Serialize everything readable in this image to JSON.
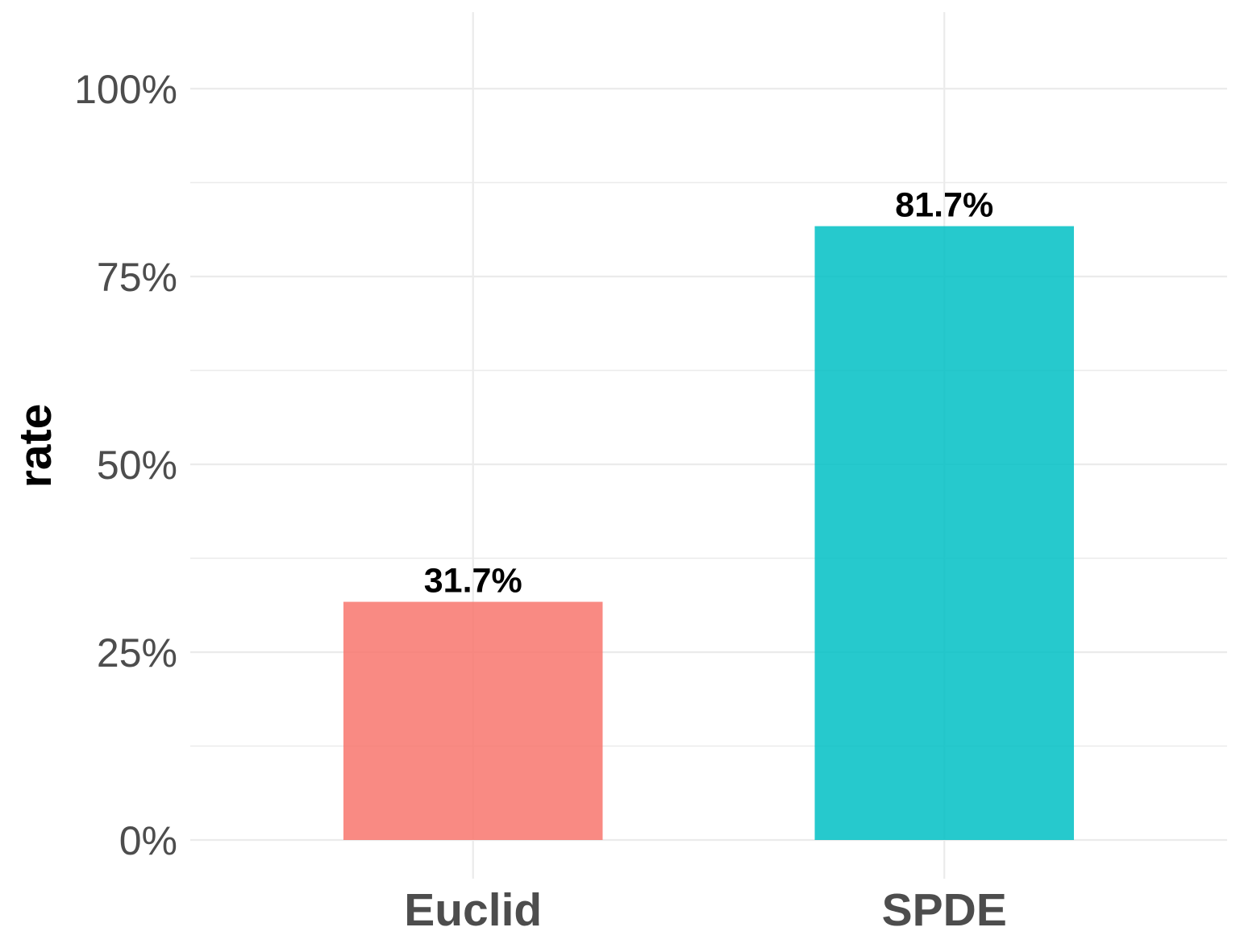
{
  "chart_data": {
    "type": "bar",
    "categories": [
      "Euclid",
      "SPDE"
    ],
    "values": [
      31.7,
      81.7
    ],
    "value_labels": [
      "31.7%",
      "81.7%"
    ],
    "colors": [
      "#F8766D",
      "#00BFC4"
    ],
    "ylabel": "rate",
    "xlabel": "",
    "ylim": [
      0,
      100
    ],
    "yticks": [
      0,
      25,
      50,
      75,
      100
    ],
    "ytick_labels": [
      "0%",
      "25%",
      "50%",
      "75%",
      "100%"
    ],
    "grid": true,
    "legend": "none"
  }
}
